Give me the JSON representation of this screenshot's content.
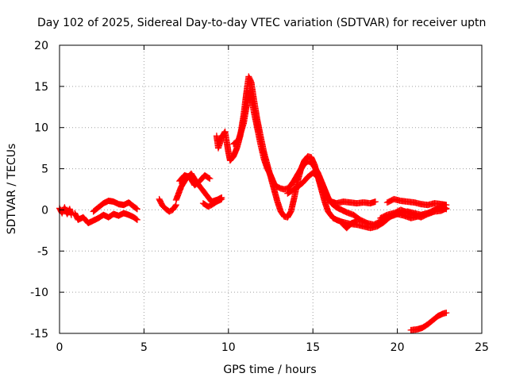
{
  "chart_data": {
    "type": "scatter",
    "title": "Day 102 of 2025, Sidereal Day-to-day VTEC variation (SDTVAR) for receiver uptn",
    "xlabel": "GPS time / hours",
    "ylabel": "SDTVAR / TECUs",
    "xlim": [
      0,
      25
    ],
    "ylim": [
      -15,
      20
    ],
    "xticks": [
      0,
      5,
      10,
      15,
      20,
      25
    ],
    "yticks": [
      -15,
      -10,
      -5,
      0,
      5,
      10,
      15,
      20
    ],
    "xtick_labels": [
      "0",
      "5",
      "10",
      "15",
      "20",
      "25"
    ],
    "ytick_labels": [
      "-15",
      "-10",
      "-5",
      "0",
      "5",
      "10",
      "15",
      "20"
    ],
    "grid": true,
    "legend": "none",
    "marker": "+",
    "series": [
      {
        "name": "SDTVAR",
        "color": "#ff0000",
        "segments": [
          [
            [
              0.0,
              0.2
            ],
            [
              0.15,
              -0.4
            ],
            [
              0.3,
              0.3
            ],
            [
              0.45,
              -0.5
            ],
            [
              0.6,
              0.1
            ],
            [
              0.7,
              -0.6
            ]
          ],
          [
            [
              0.9,
              -0.4
            ],
            [
              1.1,
              -1.2
            ],
            [
              1.4,
              -0.9
            ],
            [
              1.7,
              -1.6
            ],
            [
              2.0,
              -1.3
            ],
            [
              2.3,
              -1.0
            ],
            [
              2.6,
              -0.6
            ],
            [
              2.9,
              -0.9
            ],
            [
              3.2,
              -0.5
            ],
            [
              3.5,
              -0.7
            ],
            [
              3.8,
              -0.4
            ],
            [
              4.1,
              -0.6
            ],
            [
              4.4,
              -0.9
            ],
            [
              4.6,
              -1.2
            ]
          ],
          [
            [
              2.0,
              -0.2
            ],
            [
              2.3,
              0.3
            ],
            [
              2.6,
              0.8
            ],
            [
              2.9,
              1.1
            ],
            [
              3.2,
              1.0
            ],
            [
              3.5,
              0.7
            ],
            [
              3.8,
              0.6
            ],
            [
              4.1,
              0.9
            ],
            [
              4.4,
              0.4
            ],
            [
              4.6,
              0.1
            ]
          ],
          [
            [
              5.9,
              1.3
            ],
            [
              6.1,
              0.5
            ],
            [
              6.3,
              0.1
            ],
            [
              6.5,
              -0.2
            ],
            [
              6.7,
              0.0
            ],
            [
              6.9,
              0.6
            ]
          ],
          [
            [
              6.9,
              1.2
            ],
            [
              7.2,
              2.8
            ],
            [
              7.5,
              3.8
            ],
            [
              7.8,
              4.4
            ],
            [
              8.1,
              3.4
            ],
            [
              8.4,
              2.6
            ],
            [
              8.7,
              1.8
            ],
            [
              9.0,
              1.0
            ],
            [
              9.3,
              1.2
            ],
            [
              9.6,
              1.5
            ]
          ],
          [
            [
              7.1,
              3.5
            ],
            [
              7.4,
              4.2
            ],
            [
              7.7,
              4.0
            ],
            [
              8.0,
              3.0
            ],
            [
              8.3,
              3.5
            ],
            [
              8.6,
              4.2
            ],
            [
              8.9,
              3.8
            ]
          ],
          [
            [
              8.5,
              0.8
            ],
            [
              8.8,
              0.4
            ],
            [
              9.0,
              0.6
            ],
            [
              9.3,
              1.0
            ],
            [
              9.6,
              1.3
            ]
          ],
          [
            [
              9.3,
              9.0
            ],
            [
              9.4,
              7.5
            ],
            [
              9.6,
              8.8
            ],
            [
              9.8,
              9.5
            ],
            [
              10.0,
              7.0
            ],
            [
              10.1,
              6.0
            ],
            [
              10.3,
              6.5
            ],
            [
              10.5,
              7.5
            ],
            [
              10.7,
              9.0
            ],
            [
              10.9,
              11.5
            ],
            [
              11.05,
              14.0
            ],
            [
              11.2,
              16.2
            ],
            [
              11.35,
              15.5
            ],
            [
              11.5,
              13.5
            ],
            [
              11.7,
              11.0
            ],
            [
              11.9,
              9.0
            ],
            [
              12.1,
              7.0
            ],
            [
              12.3,
              5.5
            ],
            [
              12.5,
              4.0
            ],
            [
              12.7,
              2.5
            ],
            [
              12.9,
              1.0
            ],
            [
              13.1,
              -0.2
            ],
            [
              13.3,
              -0.8
            ],
            [
              13.5,
              -0.9
            ],
            [
              13.7,
              -0.2
            ],
            [
              13.9,
              1.5
            ],
            [
              14.1,
              3.5
            ],
            [
              14.3,
              5.0
            ],
            [
              14.5,
              6.0
            ],
            [
              14.7,
              6.5
            ],
            [
              14.9,
              6.4
            ],
            [
              15.1,
              5.5
            ],
            [
              15.3,
              4.0
            ],
            [
              15.5,
              2.5
            ],
            [
              15.7,
              1.0
            ],
            [
              15.9,
              -0.2
            ],
            [
              16.2,
              -1.0
            ],
            [
              16.5,
              -1.3
            ],
            [
              16.8,
              -1.5
            ],
            [
              17.2,
              -1.7
            ],
            [
              17.6,
              -1.8
            ],
            [
              18.0,
              -2.0
            ],
            [
              18.4,
              -2.2
            ],
            [
              18.8,
              -2.0
            ],
            [
              19.2,
              -1.5
            ],
            [
              19.6,
              -0.8
            ],
            [
              20.0,
              -0.5
            ],
            [
              20.4,
              -0.7
            ],
            [
              20.8,
              -1.0
            ],
            [
              21.2,
              -0.8
            ],
            [
              21.6,
              -0.5
            ],
            [
              22.0,
              -0.3
            ],
            [
              22.4,
              0.2
            ],
            [
              22.8,
              0.3
            ]
          ],
          [
            [
              10.3,
              8.0
            ],
            [
              10.6,
              8.5
            ],
            [
              10.9,
              10.5
            ],
            [
              11.1,
              13.0
            ],
            [
              11.3,
              14.5
            ],
            [
              11.5,
              12.0
            ],
            [
              11.7,
              10.0
            ],
            [
              11.9,
              8.0
            ],
            [
              12.1,
              6.2
            ],
            [
              12.3,
              5.0
            ],
            [
              12.5,
              4.2
            ],
            [
              12.7,
              3.2
            ],
            [
              12.9,
              2.8
            ],
            [
              13.1,
              2.6
            ],
            [
              13.3,
              2.5
            ],
            [
              13.5,
              2.6
            ],
            [
              13.7,
              3.0
            ],
            [
              13.9,
              3.6
            ],
            [
              14.1,
              4.3
            ],
            [
              14.3,
              5.0
            ],
            [
              14.5,
              5.6
            ],
            [
              14.7,
              5.9
            ],
            [
              14.9,
              5.8
            ],
            [
              15.1,
              5.2
            ],
            [
              15.3,
              4.5
            ],
            [
              15.5,
              3.5
            ],
            [
              15.7,
              2.5
            ],
            [
              15.9,
              1.5
            ],
            [
              16.1,
              0.8
            ],
            [
              16.4,
              0.3
            ],
            [
              16.7,
              0.0
            ],
            [
              17.0,
              -0.3
            ],
            [
              17.4,
              -0.6
            ],
            [
              17.8,
              -1.2
            ],
            [
              18.2,
              -1.6
            ],
            [
              18.6,
              -1.8
            ],
            [
              19.0,
              -1.4
            ],
            [
              19.4,
              -1.0
            ],
            [
              19.8,
              -0.6
            ],
            [
              20.2,
              -0.3
            ],
            [
              20.6,
              -0.2
            ],
            [
              21.0,
              -0.4
            ],
            [
              21.4,
              -0.6
            ],
            [
              21.8,
              -0.4
            ],
            [
              22.2,
              0.0
            ],
            [
              22.6,
              0.3
            ],
            [
              22.9,
              0.1
            ]
          ],
          [
            [
              13.5,
              2.0
            ],
            [
              13.8,
              2.4
            ],
            [
              14.1,
              2.8
            ],
            [
              14.4,
              3.3
            ],
            [
              14.7,
              4.0
            ],
            [
              15.0,
              4.5
            ],
            [
              15.3,
              4.0
            ],
            [
              15.5,
              2.8
            ],
            [
              15.8,
              1.5
            ],
            [
              16.1,
              1.0
            ],
            [
              16.4,
              0.8
            ],
            [
              16.8,
              1.0
            ],
            [
              17.2,
              0.9
            ],
            [
              17.6,
              0.8
            ],
            [
              18.0,
              0.9
            ],
            [
              18.4,
              0.8
            ],
            [
              18.7,
              1.0
            ]
          ],
          [
            [
              19.4,
              0.9
            ],
            [
              19.8,
              1.3
            ],
            [
              20.2,
              1.1
            ],
            [
              20.6,
              1.0
            ],
            [
              21.0,
              0.9
            ],
            [
              21.4,
              0.7
            ],
            [
              21.8,
              0.6
            ],
            [
              22.2,
              0.8
            ],
            [
              22.6,
              0.7
            ],
            [
              22.9,
              0.6
            ]
          ],
          [
            [
              16.8,
              -1.8
            ],
            [
              17.0,
              -2.2
            ],
            [
              17.3,
              -1.6
            ],
            [
              17.6,
              -1.4
            ]
          ],
          [
            [
              19.0,
              -1.0
            ],
            [
              19.4,
              -0.6
            ],
            [
              19.8,
              -0.4
            ],
            [
              20.2,
              0.0
            ],
            [
              20.6,
              -0.3
            ],
            [
              21.0,
              -0.6
            ],
            [
              21.4,
              -0.9
            ],
            [
              21.8,
              -0.5
            ],
            [
              22.2,
              -0.2
            ],
            [
              22.6,
              -0.1
            ],
            [
              22.9,
              0.2
            ]
          ],
          [
            [
              20.8,
              -14.6
            ],
            [
              21.2,
              -14.5
            ],
            [
              21.5,
              -14.3
            ],
            [
              21.8,
              -13.9
            ],
            [
              22.1,
              -13.4
            ],
            [
              22.4,
              -12.9
            ],
            [
              22.7,
              -12.6
            ],
            [
              22.9,
              -12.5
            ]
          ]
        ]
      }
    ]
  }
}
